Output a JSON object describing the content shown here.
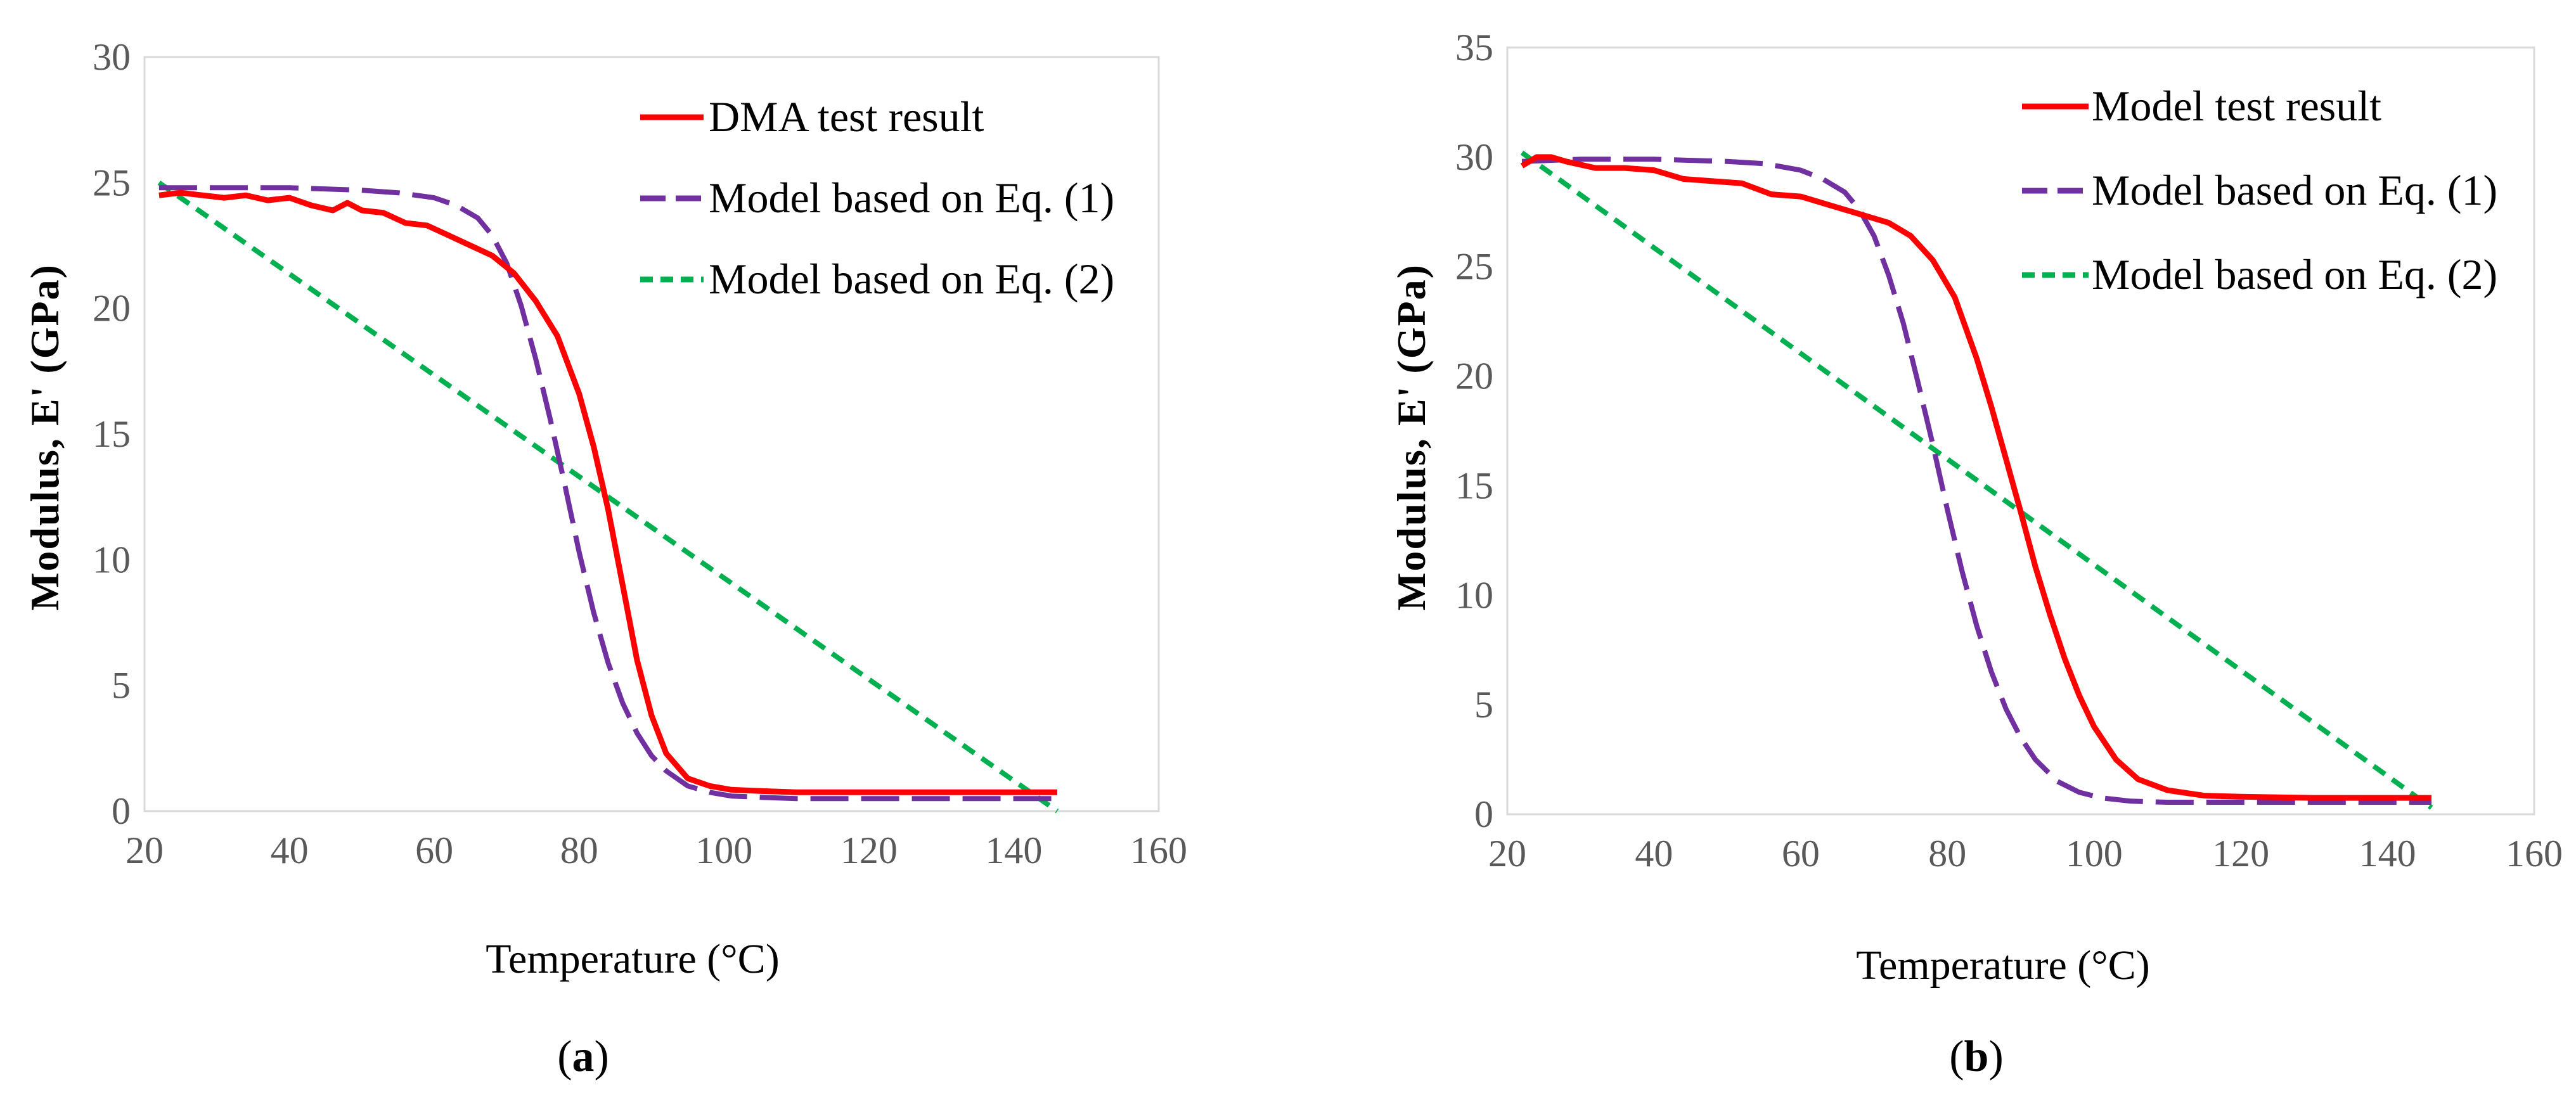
{
  "chart_data": [
    {
      "type": "line",
      "caption": {
        "open": "(",
        "letter": "a",
        "close": ")"
      },
      "xlabel": "Temperature (°C)",
      "ylabel": "Modulus, E' (GPa)",
      "xlim": [
        20,
        160
      ],
      "ylim": [
        0,
        30
      ],
      "xticks": [
        20,
        40,
        60,
        80,
        100,
        120,
        140,
        160
      ],
      "yticks": [
        0,
        5,
        10,
        15,
        20,
        25,
        30
      ],
      "grid": false,
      "legend_position": "top-right",
      "series": [
        {
          "name": "DMA test result",
          "color": "#ff0000",
          "style": "solid",
          "x": [
            22,
            25,
            28,
            31,
            34,
            37,
            40,
            43,
            46,
            48,
            50,
            53,
            56,
            59,
            62,
            65,
            68,
            71,
            74,
            77,
            80,
            82,
            84,
            86,
            88,
            90,
            92,
            95,
            98,
            101,
            105,
            110,
            120,
            130,
            140,
            146
          ],
          "y": [
            24.5,
            24.6,
            24.5,
            24.4,
            24.5,
            24.3,
            24.4,
            24.1,
            23.9,
            24.2,
            23.9,
            23.8,
            23.4,
            23.3,
            22.9,
            22.5,
            22.1,
            21.4,
            20.3,
            18.9,
            16.6,
            14.5,
            12.0,
            9.0,
            6.0,
            3.8,
            2.3,
            1.3,
            1.0,
            0.85,
            0.8,
            0.75,
            0.75,
            0.75,
            0.75,
            0.75
          ]
        },
        {
          "name": "Model based on Eq. (1)",
          "color": "#7030a0",
          "style": "longdash",
          "x": [
            22,
            30,
            40,
            50,
            55,
            60,
            63,
            66,
            68,
            70,
            72,
            74,
            76,
            78,
            80,
            82,
            84,
            86,
            88,
            90,
            92,
            95,
            98,
            101,
            105,
            110,
            120,
            130,
            146
          ],
          "y": [
            24.8,
            24.8,
            24.8,
            24.7,
            24.6,
            24.4,
            24.1,
            23.6,
            22.9,
            21.8,
            20.1,
            18.0,
            15.6,
            13.0,
            10.3,
            7.9,
            5.9,
            4.3,
            3.1,
            2.2,
            1.6,
            1.0,
            0.75,
            0.6,
            0.55,
            0.5,
            0.5,
            0.5,
            0.5
          ]
        },
        {
          "name": "Model based on Eq. (2)",
          "color": "#00b050",
          "style": "shortdash",
          "x": [
            22,
            146
          ],
          "y": [
            25.0,
            0.0
          ]
        }
      ]
    },
    {
      "type": "line",
      "caption": {
        "open": "(",
        "letter": "b",
        "close": ")"
      },
      "xlabel": "Temperature (°C)",
      "ylabel": "Modulus, E' (GPa)",
      "xlim": [
        20,
        160
      ],
      "ylim": [
        0,
        35
      ],
      "xticks": [
        20,
        40,
        60,
        80,
        100,
        120,
        140,
        160
      ],
      "yticks": [
        0,
        5,
        10,
        15,
        20,
        25,
        30,
        35
      ],
      "grid": false,
      "legend_position": "top-right",
      "series": [
        {
          "name": "Model test result",
          "color": "#ff0000",
          "style": "solid",
          "x": [
            22,
            24,
            26,
            28,
            32,
            36,
            40,
            44,
            48,
            52,
            56,
            60,
            64,
            68,
            72,
            75,
            78,
            81,
            84,
            86,
            88,
            90,
            92,
            94,
            96,
            98,
            100,
            103,
            106,
            110,
            115,
            120,
            130,
            140,
            146
          ],
          "y": [
            29.6,
            30.0,
            30.0,
            29.8,
            29.5,
            29.5,
            29.4,
            29.0,
            28.9,
            28.8,
            28.3,
            28.2,
            27.8,
            27.4,
            27.0,
            26.4,
            25.3,
            23.6,
            20.8,
            18.6,
            16.2,
            13.8,
            11.3,
            9.1,
            7.1,
            5.4,
            4.0,
            2.5,
            1.6,
            1.1,
            0.85,
            0.8,
            0.75,
            0.75,
            0.75
          ]
        },
        {
          "name": "Model based on Eq. (1)",
          "color": "#7030a0",
          "style": "longdash",
          "x": [
            22,
            30,
            40,
            50,
            55,
            60,
            63,
            66,
            68,
            70,
            72,
            74,
            76,
            78,
            80,
            82,
            84,
            86,
            88,
            90,
            92,
            95,
            98,
            101,
            105,
            110,
            120,
            130,
            146
          ],
          "y": [
            29.8,
            29.9,
            29.9,
            29.8,
            29.7,
            29.4,
            29.0,
            28.4,
            27.6,
            26.4,
            24.6,
            22.4,
            19.7,
            16.9,
            13.9,
            11.1,
            8.6,
            6.5,
            4.8,
            3.5,
            2.5,
            1.5,
            1.0,
            0.75,
            0.6,
            0.55,
            0.55,
            0.55,
            0.55
          ]
        },
        {
          "name": "Model based on Eq. (2)",
          "color": "#00b050",
          "style": "shortdash",
          "x": [
            22,
            146
          ],
          "y": [
            30.2,
            0.3
          ]
        }
      ]
    }
  ]
}
